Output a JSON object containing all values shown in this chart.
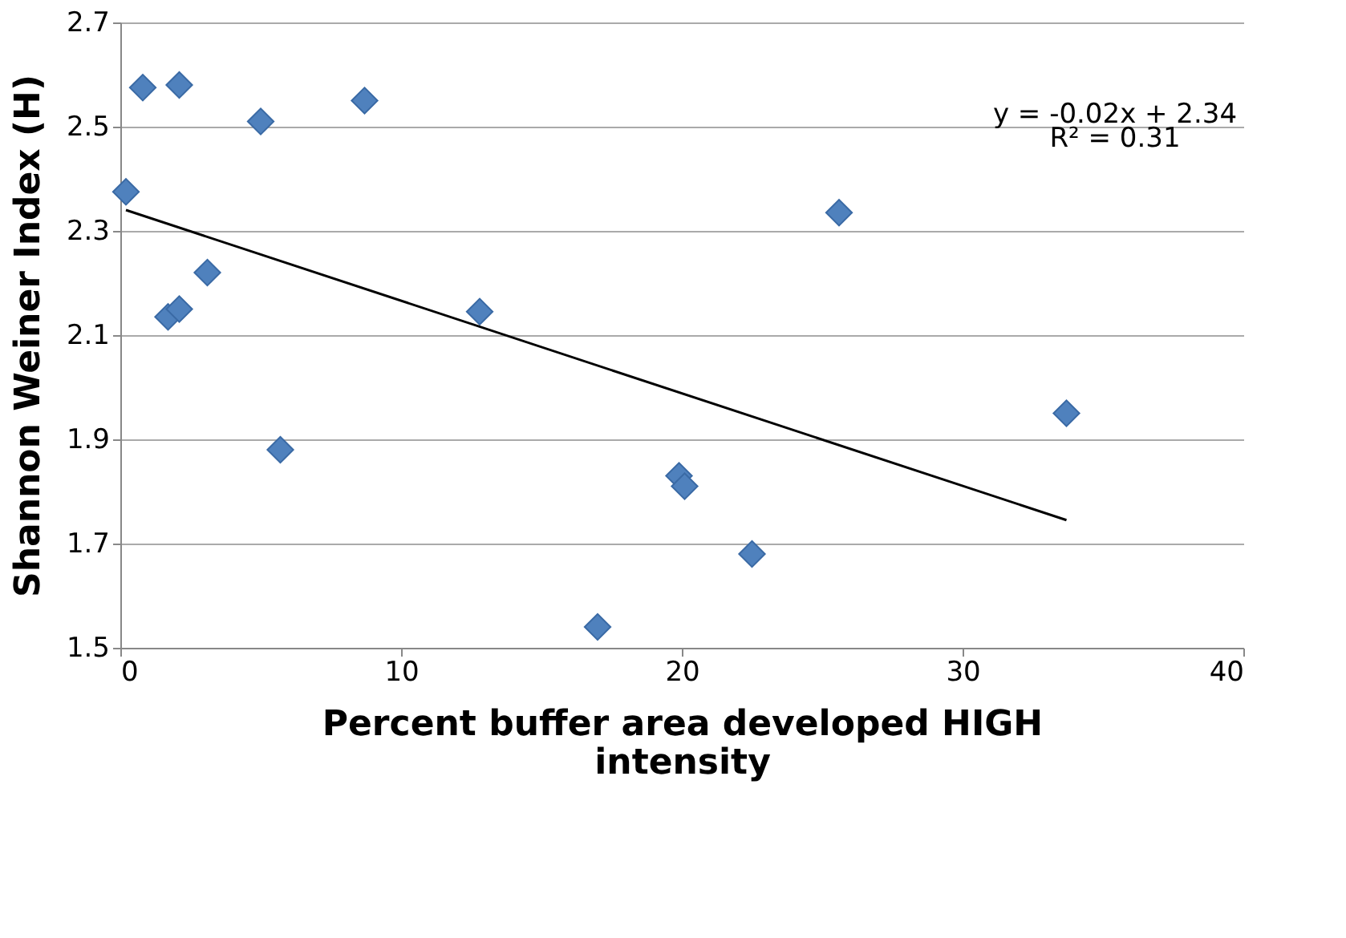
{
  "chart_data": {
    "type": "scatter",
    "xlabel": "Percent buffer area developed HIGH intensity",
    "ylabel": "Shannon Weiner Index (H)",
    "xlim": [
      0,
      40
    ],
    "xticks": [
      0,
      10,
      20,
      30,
      40
    ],
    "ylim": [
      1.5,
      2.7
    ],
    "yticks": [
      1.5,
      1.7,
      1.9,
      2.1,
      2.3,
      2.5,
      2.7
    ],
    "grid": "y",
    "legend": false,
    "series": [
      {
        "color": "#4f81bd",
        "marker": "diamond",
        "x": [
          0.2,
          0.8,
          2.1,
          5.0,
          8.7,
          1.7,
          2.1,
          3.1,
          5.7,
          12.8,
          17.0,
          19.9,
          20.1,
          22.5,
          25.6,
          33.7
        ],
        "values": [
          2.375,
          2.575,
          2.58,
          2.51,
          2.55,
          2.135,
          2.15,
          2.22,
          1.88,
          2.145,
          1.54,
          1.83,
          1.81,
          1.68,
          2.335,
          1.95
        ]
      },
      {
        "type": "line",
        "color": "#000000",
        "x": [
          0.2,
          33.7
        ],
        "values": [
          2.34,
          1.745
        ]
      }
    ],
    "annotations": [
      "y = -0.02x + 2.34",
      "R² = 0.31"
    ]
  }
}
